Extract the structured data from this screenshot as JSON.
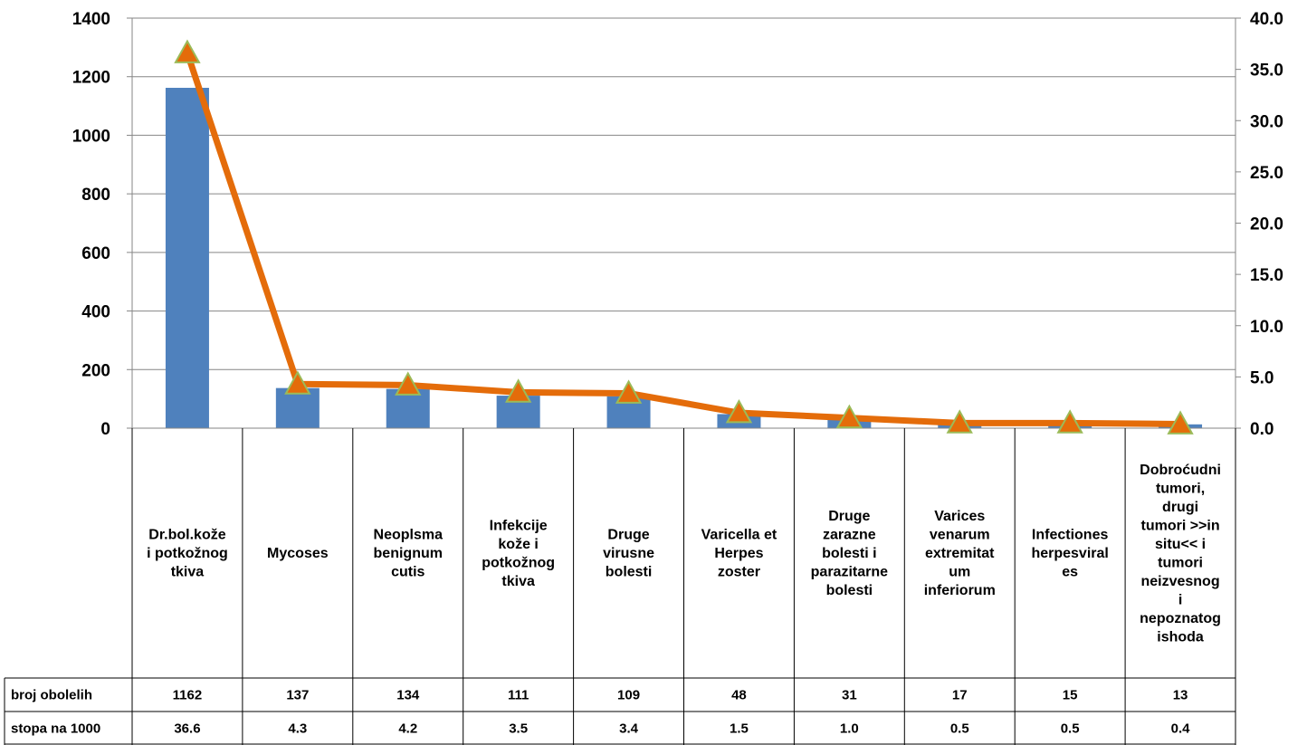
{
  "chart_data": {
    "type": "bar",
    "categories": [
      [
        "Dr.bol.kože",
        "i potkožnog",
        "tkiva"
      ],
      [
        "Mycoses"
      ],
      [
        "Neoplsma",
        "benignum",
        "cutis"
      ],
      [
        "Infekcije",
        "kože i",
        "potkožnog",
        "tkiva"
      ],
      [
        "Druge",
        "virusne",
        "bolesti"
      ],
      [
        "Varicella et",
        "Herpes",
        "zoster"
      ],
      [
        "Druge",
        "zarazne",
        "bolesti i",
        "parazitarne",
        "bolesti"
      ],
      [
        "Varices",
        "venarum",
        "extremitat",
        "um",
        "inferiorum"
      ],
      [
        "Infectiones",
        "herpesviral",
        "es"
      ],
      [
        "Dobroćudni",
        "tumori,",
        "drugi",
        "tumori >>in",
        "situ<< i",
        "tumori",
        "neizvesnog",
        "i",
        "nepoznatog",
        "ishoda"
      ]
    ],
    "series": [
      {
        "name": "broj obolelih",
        "type": "bar",
        "axis": "left",
        "values": [
          1162,
          137,
          134,
          111,
          109,
          48,
          31,
          17,
          15,
          13
        ],
        "labels": [
          "1162",
          "137",
          "134",
          "111",
          "109",
          "48",
          "31",
          "17",
          "15",
          "13"
        ],
        "color": "#4F81BD"
      },
      {
        "name": "stopa na 1000",
        "type": "line",
        "axis": "right",
        "marker": "triangle",
        "values": [
          36.6,
          4.3,
          4.2,
          3.5,
          3.4,
          1.5,
          1.0,
          0.5,
          0.5,
          0.4
        ],
        "labels": [
          "36.6",
          "4.3",
          "4.2",
          "3.5",
          "3.4",
          "1.5",
          "1.0",
          "0.5",
          "0.5",
          "0.4"
        ],
        "color": "#E46C0A",
        "marker_color": "#E46C0A",
        "marker_edge": "#9BBB59"
      }
    ],
    "ylim": [
      0,
      1400
    ],
    "y_ticks": [
      "0",
      "200",
      "400",
      "600",
      "800",
      "1000",
      "1200",
      "1400"
    ],
    "y2lim": [
      0,
      40
    ],
    "y2_ticks": [
      "0.0",
      "5.0",
      "10.0",
      "15.0",
      "20.0",
      "25.0",
      "30.0",
      "35.0",
      "40.0"
    ],
    "grid": true,
    "legend": "data-table-left"
  }
}
